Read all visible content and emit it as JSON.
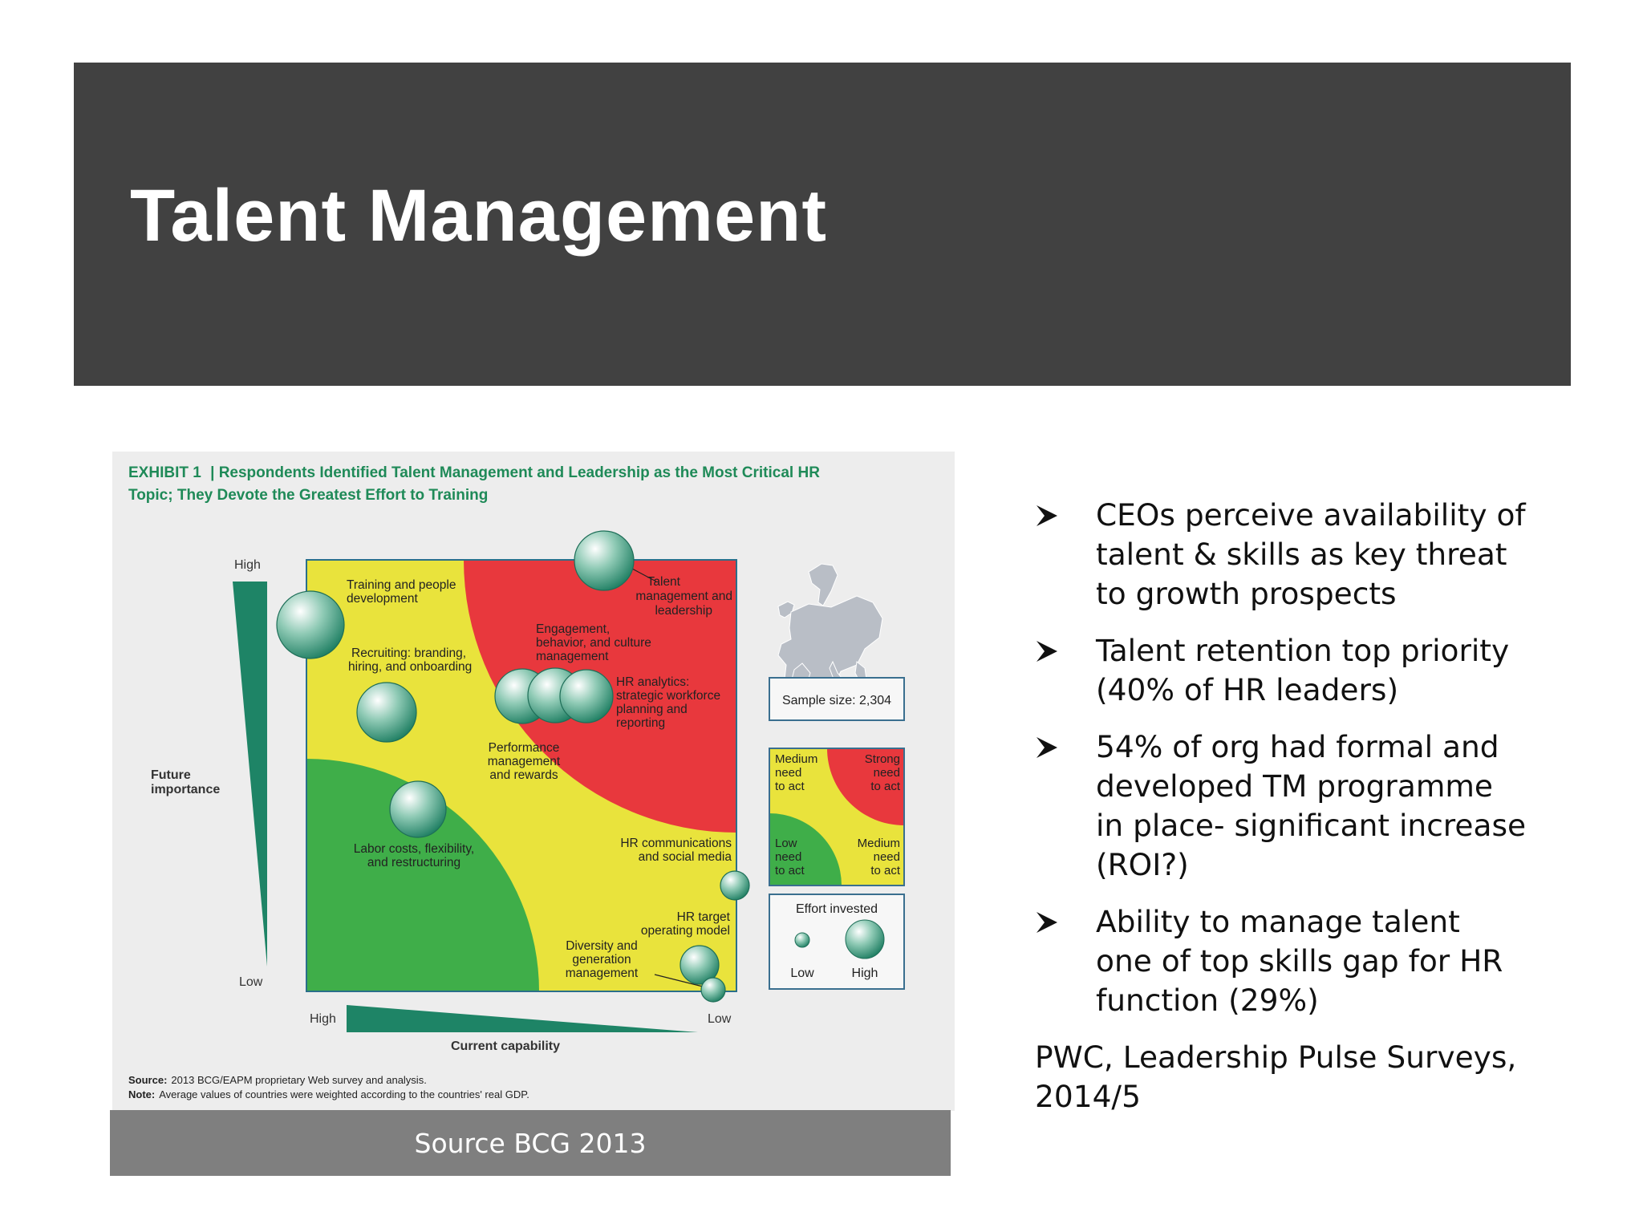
{
  "slide": {
    "title": "Talent Management",
    "caption": "Source BCG 2013",
    "bullets": [
      "CEOs perceive availability of\ntalent & skills as key threat\nto growth prospects",
      "Talent retention top priority\n(40% of HR leaders)",
      "54% of org had formal and\ndeveloped TM programme\nin place- significant increase\n(ROI?)",
      "Ability to manage talent\none of top skills gap for HR\nfunction (29%)"
    ],
    "citation_line1": "PWC, Leadership Pulse Surveys,",
    "citation_line2": "2014/5",
    "bullet_icon": "arrowhead-bullet-icon"
  },
  "exhibit": {
    "label": "EXHIBIT 1",
    "title_line1": "Respondents Identified Talent Management and Leadership as the Most Critical HR",
    "title_line2": "Topic; They Devote the Greatest Effort to Training",
    "y_axis": {
      "label_line1": "Future",
      "label_line2": "importance",
      "high": "High",
      "low": "Low"
    },
    "x_axis": {
      "label": "Current capability",
      "high": "High",
      "low": "Low"
    },
    "topics": {
      "training": [
        "Training and people",
        "development"
      ],
      "talent": [
        "Talent",
        "management and",
        "leadership"
      ],
      "engagement": [
        "Engagement,",
        "behavior, and culture",
        "management"
      ],
      "recruiting": [
        "Recruiting: branding,",
        "hiring, and onboarding"
      ],
      "analytics": [
        "HR analytics:",
        "strategic workforce",
        "planning and",
        "reporting"
      ],
      "performance": [
        "Performance",
        "management",
        "and rewards"
      ],
      "labor": [
        "Labor costs, flexibility,",
        "and restructuring"
      ],
      "communications": [
        "HR communications",
        "and social media"
      ],
      "operating_model": [
        "HR target",
        "operating model"
      ],
      "diversity": [
        "Diversity and",
        "generation",
        "management"
      ]
    },
    "sample_size": "Sample size: 2,304",
    "legend": {
      "medium_top": [
        "Medium",
        "need",
        "to act"
      ],
      "strong": [
        "Strong",
        "need",
        "to act"
      ],
      "low_need": [
        "Low",
        "need",
        "to act"
      ],
      "medium_bottom": [
        "Medium",
        "need",
        "to act"
      ],
      "effort_title": "Effort invested",
      "effort_low": "Low",
      "effort_high": "High"
    },
    "source_label": "Source:",
    "source_text": "2013 BCG/EAPM proprietary Web survey and analysis.",
    "note_label": "Note:",
    "note_text": "Average values of countries were weighted according to the countries' real GDP.",
    "map_icon": "europe-map-icon",
    "colors": {
      "red": "#e8383d",
      "yellow": "#e9e33c",
      "green": "#3fae49",
      "teal": "#1e7e62",
      "title_green": "#1f8a58"
    }
  }
}
